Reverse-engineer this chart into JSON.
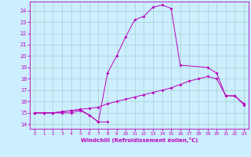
{
  "xlabel": "Windchill (Refroidissement éolien,°C)",
  "background_color": "#cceeff",
  "line_color": "#bb00bb",
  "x_ticks": [
    0,
    1,
    2,
    3,
    4,
    5,
    6,
    7,
    8,
    9,
    10,
    11,
    12,
    13,
    14,
    15,
    16,
    17,
    18,
    19,
    20,
    21,
    22,
    23
  ],
  "y_ticks": [
    14,
    15,
    16,
    17,
    18,
    19,
    20,
    21,
    22,
    23,
    24
  ],
  "xlim": [
    -0.5,
    23.5
  ],
  "ylim": [
    13.6,
    24.8
  ],
  "series": [
    {
      "x": [
        0,
        1,
        2,
        3,
        4,
        5,
        6,
        7,
        8
      ],
      "y": [
        15.0,
        15.0,
        15.0,
        15.0,
        15.0,
        15.2,
        14.8,
        14.2,
        14.2
      ]
    },
    {
      "x": [
        0,
        1,
        2,
        3,
        4,
        5,
        6,
        7,
        8,
        9,
        10,
        11,
        12,
        13,
        14,
        15,
        16,
        17,
        18,
        19,
        20,
        21,
        22,
        23
      ],
      "y": [
        15.0,
        15.0,
        15.0,
        15.1,
        15.2,
        15.3,
        15.4,
        15.5,
        15.8,
        16.0,
        16.2,
        16.4,
        16.6,
        16.8,
        17.0,
        17.2,
        17.5,
        17.8,
        18.0,
        18.2,
        18.0,
        16.5,
        16.5,
        15.8
      ]
    },
    {
      "x": [
        0,
        1,
        2,
        3,
        4,
        5,
        6,
        7,
        8,
        9,
        10,
        11,
        12,
        13,
        14,
        15,
        16,
        19,
        20,
        21,
        22,
        23
      ],
      "y": [
        15.0,
        15.0,
        15.0,
        15.1,
        15.2,
        15.3,
        14.8,
        14.2,
        18.5,
        20.0,
        21.7,
        23.2,
        23.5,
        24.3,
        24.5,
        24.2,
        19.2,
        19.0,
        18.5,
        16.5,
        16.5,
        15.7
      ]
    }
  ]
}
